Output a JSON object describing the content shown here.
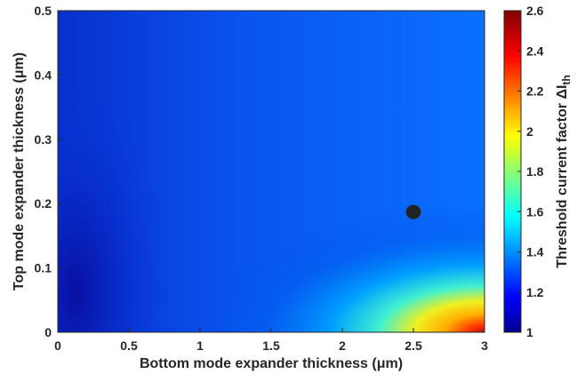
{
  "chart_data": {
    "type": "heatmap",
    "title": "",
    "xlabel": "Bottom mode expander thickness (μm)",
    "ylabel": "Top mode expander thickness (μm)",
    "xlim": [
      0,
      3
    ],
    "ylim": [
      0,
      0.5
    ],
    "x_ticks": [
      "0",
      "0.5",
      "1",
      "1.5",
      "2",
      "2.5",
      "3"
    ],
    "y_ticks": [
      "0",
      "0.1",
      "0.2",
      "0.3",
      "0.4",
      "0.5"
    ],
    "colorbar": {
      "label": "Threshold current factor ΔI",
      "label_subscript": "th",
      "range": [
        1,
        2.6
      ],
      "ticks": [
        "1",
        "1.2",
        "1.4",
        "1.6",
        "1.8",
        "2",
        "2.2",
        "2.4",
        "2.6"
      ],
      "colormap": "jet"
    },
    "marker": {
      "x": 2.5,
      "y": 0.187,
      "color": "#222222"
    },
    "grid": false
  }
}
